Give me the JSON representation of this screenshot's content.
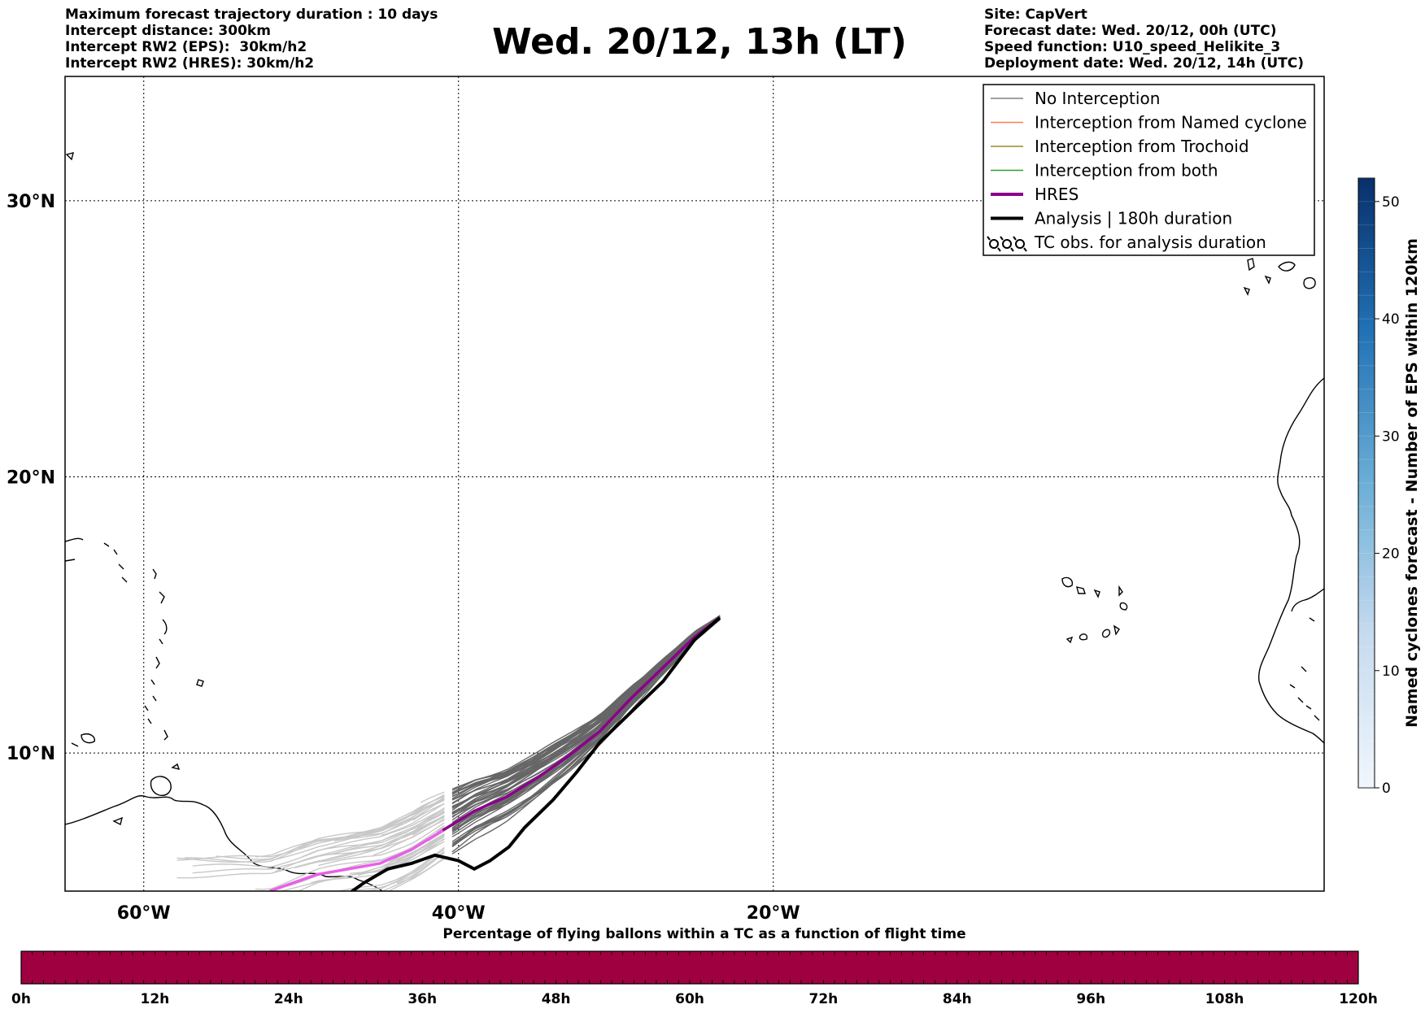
{
  "title": "Wed. 20/12, 13h (LT)",
  "info_left": [
    "Maximum forecast trajectory duration : 10 days",
    "Intercept distance: 300km",
    "Intercept RW2 (EPS):  30km/h2",
    "Intercept RW2 (HRES): 30km/h2"
  ],
  "info_right": [
    "Site: CapVert",
    "Forecast date: Wed. 20/12, 00h (UTC)",
    "Speed function: U10_speed_Helikite_3",
    "Deployment date: Wed. 20/12, 14h (UTC)"
  ],
  "map": {
    "lon_range": [
      -65,
      15
    ],
    "lat_range": [
      5,
      34.5
    ],
    "lon_ticks": [
      {
        "value": -60,
        "label": "60°W"
      },
      {
        "value": -40,
        "label": "40°W"
      },
      {
        "value": -20,
        "label": "20°W"
      }
    ],
    "lat_ticks": [
      {
        "value": 10,
        "label": "10°N"
      },
      {
        "value": 20,
        "label": "20°N"
      },
      {
        "value": 30,
        "label": "30°N"
      }
    ],
    "grid": true
  },
  "legend": {
    "placement": "top-right",
    "items": [
      {
        "label": "No Interception",
        "color": "#808080",
        "style": "thin-line"
      },
      {
        "label": "Interception from Named cyclone",
        "color": "#ff7f50",
        "style": "thin-line"
      },
      {
        "label": "Interception from Trochoid",
        "color": "#9a8a2e",
        "style": "thin-line"
      },
      {
        "label": "Interception from both",
        "color": "#2ca02c",
        "style": "thin-line"
      },
      {
        "label": "HRES",
        "color": "#8b008b",
        "style": "thick-line"
      },
      {
        "label": "Analysis | 180h duration",
        "color": "#000000",
        "style": "thick-line"
      },
      {
        "label": "TC obs. for analysis duration",
        "color": "#000000",
        "style": "cyclone-symbol-icon"
      }
    ]
  },
  "trajectories": {
    "start": {
      "lon": -23.4,
      "lat": 14.9
    },
    "hres": [
      [
        -23.4,
        14.9
      ],
      [
        -25,
        14.2
      ],
      [
        -27,
        13.1
      ],
      [
        -29,
        12.0
      ],
      [
        -31,
        10.8
      ],
      [
        -33,
        9.9
      ],
      [
        -35,
        9.1
      ],
      [
        -37,
        8.4
      ],
      [
        -39,
        7.9
      ],
      [
        -41,
        7.2
      ],
      [
        -43,
        6.5
      ],
      [
        -45,
        6.0
      ],
      [
        -47,
        5.8
      ],
      [
        -49,
        5.6
      ],
      [
        -50.5,
        5.3
      ],
      [
        -52,
        5.0
      ]
    ],
    "analysis": [
      [
        -23.4,
        14.9
      ],
      [
        -25,
        14.1
      ],
      [
        -27,
        12.6
      ],
      [
        -29,
        11.5
      ],
      [
        -31,
        10.4
      ],
      [
        -32.5,
        9.3
      ],
      [
        -34,
        8.3
      ],
      [
        -35.8,
        7.3
      ],
      [
        -36.8,
        6.6
      ],
      [
        -38,
        6.1
      ],
      [
        -39,
        5.8
      ],
      [
        -40,
        6.1
      ],
      [
        -41.5,
        6.3
      ],
      [
        -43,
        6.0
      ],
      [
        -44.5,
        5.8
      ],
      [
        -46,
        5.3
      ],
      [
        -47,
        4.9
      ]
    ]
  },
  "cyclone_colorbar": {
    "label": "Named cyclones forecast - Number of EPS within 120km",
    "min": 0,
    "max": 52,
    "ticks": [
      0,
      10,
      20,
      30,
      40,
      50
    ],
    "colors": [
      "#eef4fb",
      "#084594"
    ]
  },
  "time_colorbar": {
    "title": "Percentage of flying ballons within a TC as a function of flight time",
    "ticks": [
      "0h",
      "12h",
      "24h",
      "36h",
      "48h",
      "60h",
      "72h",
      "84h",
      "96h",
      "108h",
      "120h"
    ],
    "color": "#9e0040"
  }
}
